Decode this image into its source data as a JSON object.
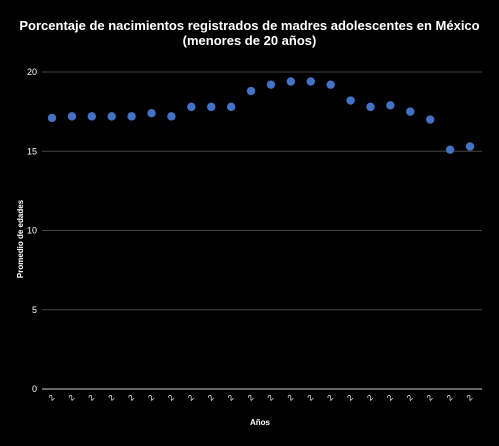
{
  "chart_data": {
    "type": "scatter",
    "title": "Porcentaje de nacimientos registrados de madres adolescentes en México",
    "subtitle": "(menores de 20 años)",
    "xlabel": "Años",
    "ylabel": "Promedio de edades",
    "ylim": [
      0,
      20
    ],
    "yticks": [
      0,
      5,
      10,
      15,
      20
    ],
    "grid": true,
    "legend": "none",
    "x_tick_labels": [
      "2",
      "2",
      "2",
      "2",
      "2",
      "2",
      "2",
      "2",
      "2",
      "2",
      "2",
      "2",
      "2",
      "2",
      "2",
      "2",
      "2",
      "2",
      "2",
      "2",
      "2",
      "2"
    ],
    "series": [
      {
        "color": "#4472c4",
        "values": [
          17.1,
          17.2,
          17.2,
          17.2,
          17.2,
          17.4,
          17.2,
          17.8,
          17.8,
          17.8,
          18.8,
          19.2,
          19.4,
          19.4,
          19.2,
          18.2,
          17.8,
          17.9,
          17.5,
          17.0,
          15.1,
          15.3
        ]
      }
    ]
  }
}
